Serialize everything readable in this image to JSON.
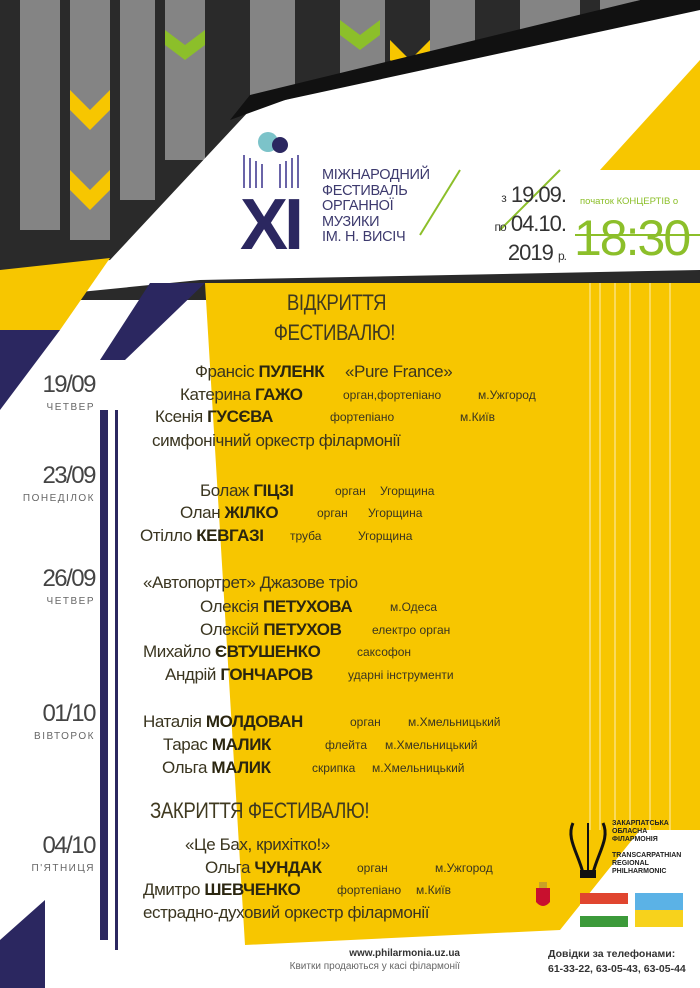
{
  "festival": {
    "number": "XI",
    "title_lines": [
      "МІЖНАРОДНИЙ",
      "ФЕСТИВАЛЬ",
      "ОРГАННОЇ",
      "МУЗИКИ",
      "ІМ. Н. ВИСІЧ"
    ],
    "date_from_prefix": "з",
    "date_from": "19.09.",
    "date_to_prefix": "по",
    "date_to": "04.10.",
    "year": "2019",
    "year_suffix": "р.",
    "start_label": "початок КОНЦЕРТІВ о",
    "start_time": "18:30"
  },
  "opening": [
    "ВІДКРИТТЯ",
    "ФЕСТИВАЛЮ!"
  ],
  "closing": "ЗАКРИТТЯ ФЕСТИВАЛЮ!",
  "concerts": [
    {
      "date": "19/09",
      "weekday": "ЧЕТВЕР",
      "lines": [
        {
          "first": "Франсіс",
          "last": "ПУЛЕНК",
          "role": "«Pure France»",
          "city": ""
        },
        {
          "first": "Катерина",
          "last": "ГАЖО",
          "role": "орган,фортепіано",
          "city": "м.Ужгород"
        },
        {
          "first": "Ксенія",
          "last": "ГУСЄВА",
          "role": "фортепіано",
          "city": "м.Київ"
        },
        {
          "first": "симфонічний оркестр філармонії",
          "last": "",
          "role": "",
          "city": ""
        }
      ]
    },
    {
      "date": "23/09",
      "weekday": "ПОНЕДІЛОК",
      "lines": [
        {
          "first": "Болаж",
          "last": "ГІЦЗІ",
          "role": "орган",
          "city": "Угорщина"
        },
        {
          "first": "Олан",
          "last": "ЖІЛКО",
          "role": "орган",
          "city": "Угорщина"
        },
        {
          "first": "Отілло",
          "last": "КЕВГАЗІ",
          "role": "труба",
          "city": "Угорщина"
        }
      ]
    },
    {
      "date": "26/09",
      "weekday": "ЧЕТВЕР",
      "lines": [
        {
          "first": "«Автопортрет» Джазове тріо",
          "last": "",
          "role": "",
          "city": ""
        },
        {
          "first": "Олексія",
          "last": "ПЕТУХОВА",
          "role": "",
          "city": "м.Одеса"
        },
        {
          "first": "Олексій",
          "last": "ПЕТУХОВ",
          "role": "електро орган",
          "city": ""
        },
        {
          "first": "Михайло",
          "last": "ЄВТУШЕНКО",
          "role": "саксофон",
          "city": ""
        },
        {
          "first": "Андрій",
          "last": "ГОНЧАРОВ",
          "role": "ударні інструменти",
          "city": ""
        }
      ]
    },
    {
      "date": "01/10",
      "weekday": "ВІВТОРОК",
      "lines": [
        {
          "first": "Наталія",
          "last": "МОЛДОВАН",
          "role": "орган",
          "city": "м.Хмельницький"
        },
        {
          "first": "Тарас",
          "last": "МАЛИК",
          "role": "флейта",
          "city": "м.Хмельницький"
        },
        {
          "first": "Ольга",
          "last": "МАЛИК",
          "role": "скрипка",
          "city": "м.Хмельницький"
        }
      ]
    },
    {
      "date": "04/10",
      "weekday": "П'ЯТНИЦЯ",
      "lines": [
        {
          "first": "«Це Бах, крихітко!»",
          "last": "",
          "role": "",
          "city": ""
        },
        {
          "first": "Ольга",
          "last": "ЧУНДАК",
          "role": "орган",
          "city": "м.Ужгород"
        },
        {
          "first": "Дмитро",
          "last": "ШЕВЧЕНКО",
          "role": "фортепіано",
          "city": "м.Київ"
        },
        {
          "first": "естрадно-духовий оркестр філармонії",
          "last": "",
          "role": "",
          "city": ""
        }
      ]
    }
  ],
  "philharmonic": {
    "ua": [
      "ЗАКАРПАТСЬКА",
      "ОБЛАСНА",
      "ФІЛАРМОНІЯ"
    ],
    "en": [
      "TRANSCARPATHIAN",
      "REGIONAL",
      "PHILHARMONIC"
    ]
  },
  "footer": {
    "website": "www.philarmonia.uz.ua",
    "tickets": "Квитки продаються у касі філармонії",
    "phones_label": "Довідки за телефонами:",
    "phones": "61-33-22, 63-05-43, 63-05-44"
  },
  "colors": {
    "yellow": "#f7c600",
    "navy": "#2b2760",
    "green": "#8cbf2a"
  }
}
